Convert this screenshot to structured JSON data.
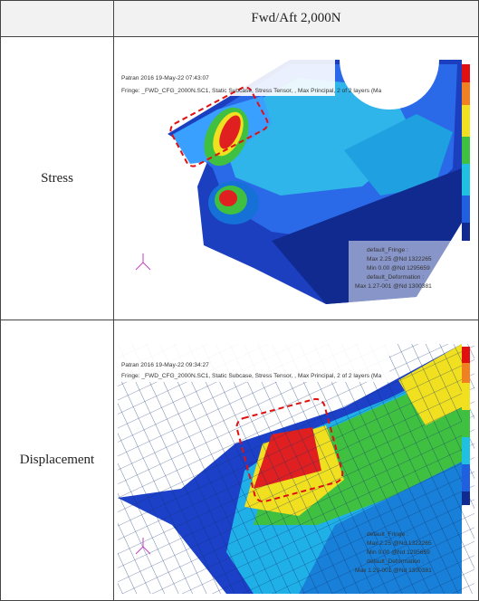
{
  "table": {
    "header": {
      "column": "Fwd/Aft 2,000N"
    },
    "rows": [
      {
        "label": "Stress",
        "image": {
          "title": "Patran 2016 19-May-22 07:43:07",
          "fringe": "Fringe: _FWD_CFG_2000N.SC1, Static Subcase, Stress Tensor, , Max Principal, 2 of 2 layers (Ma",
          "legend": [
            "default_Fringe :",
            "Max 2.25 @Nd 1322265",
            "Min 0.00 @Nd 1295659",
            "default_Deformation :",
            "Max 1.27-001 @Nd 1300381"
          ]
        }
      },
      {
        "label": "Displacement",
        "image": {
          "title": "Patran 2016 19-May-22 09:34:27",
          "fringe": "Fringe: _FWD_CFG_2000N.SC1, Static Subcase, Stress Tensor, , Max Principal, 2 of 2 layers (Ma",
          "legend": [
            "default_Fringe :",
            "Max 2.25 @Nd 1322265",
            "Min 0.00 @Nd 1295659",
            "default_Deformation :",
            "Max 1.29-001 @Nd 1300381"
          ]
        }
      }
    ]
  }
}
